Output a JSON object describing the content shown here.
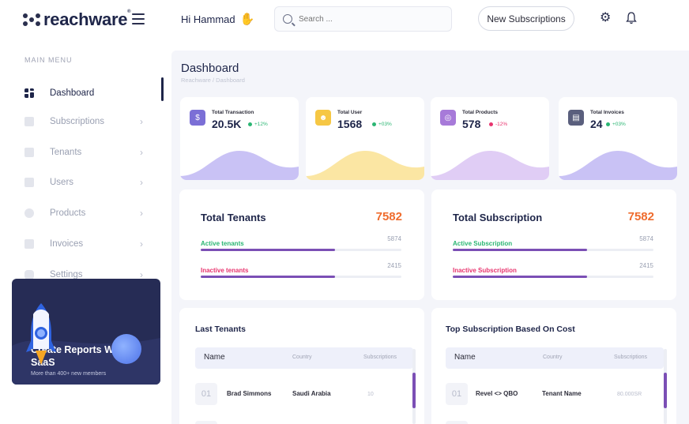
{
  "brand": {
    "name": "reachware",
    "mark": "®"
  },
  "header": {
    "greeting": "Hi Hammad",
    "search_placeholder": "Search ...",
    "new_button": "New Subscriptions"
  },
  "sidebar": {
    "menu_title": "MAIN MENU",
    "items": [
      {
        "label": "Dashboard",
        "icon": "dashboard-icon",
        "active": true
      },
      {
        "label": "Subscriptions",
        "icon": "chart-icon"
      },
      {
        "label": "Tenants",
        "icon": "users-icon"
      },
      {
        "label": "Users",
        "icon": "grid-icon"
      },
      {
        "label": "Products",
        "icon": "product-icon"
      },
      {
        "label": "Invoices",
        "icon": "document-icon"
      },
      {
        "label": "Settings",
        "icon": "settings-icon"
      }
    ],
    "promo": {
      "title": "Create Reports With SaaS",
      "subtitle": "More than 400+ new members"
    }
  },
  "page": {
    "title": "Dashboard",
    "breadcrumb": "Reachware / Dashboard"
  },
  "stats": [
    {
      "label": "Total Transaction",
      "value": "20.5K",
      "change": "+12%",
      "trend": "up",
      "color": "#7b6fd6"
    },
    {
      "label": "Total User",
      "value": "1568",
      "change": "+03%",
      "trend": "up",
      "color": "#f6c744"
    },
    {
      "label": "Total Products",
      "value": "578",
      "change": "-12%",
      "trend": "down",
      "color": "#a77ad9"
    },
    {
      "label": "Total Invoices",
      "value": "24",
      "change": "+03%",
      "trend": "up",
      "color": "#5a5f7d"
    }
  ],
  "tenants_card": {
    "title": "Total Tenants",
    "total": "7582",
    "rows": [
      {
        "label": "Active tenants",
        "value": "5874",
        "fraction": 0.67,
        "color": "#2bb673"
      },
      {
        "label": "Inactive tenants",
        "value": "2415",
        "fraction": 0.67,
        "color": "#e8346e"
      }
    ]
  },
  "subscription_card": {
    "title": "Total Subscription",
    "total": "7582",
    "rows": [
      {
        "label": "Active Subscription",
        "value": "5874",
        "fraction": 0.67,
        "color": "#2bb673"
      },
      {
        "label": "Inactive Subscription",
        "value": "2415",
        "fraction": 0.67,
        "color": "#e8346e"
      }
    ]
  },
  "last_tenants": {
    "title": "Last Tenants",
    "columns": [
      "Name",
      "Country",
      "Subscriptions"
    ],
    "rows": [
      {
        "num": "01",
        "name": "Brad Simmons",
        "country": "Saudi Arabia",
        "subs": "10"
      }
    ]
  },
  "top_subscriptions": {
    "title": "Top Subscription Based On Cost",
    "columns": [
      "Name",
      "Country",
      "Subscriptions"
    ],
    "rows": [
      {
        "num": "01",
        "name": "Revel <> QBO",
        "tenant": "Tenant Name",
        "cost": "80.000SR"
      }
    ]
  }
}
